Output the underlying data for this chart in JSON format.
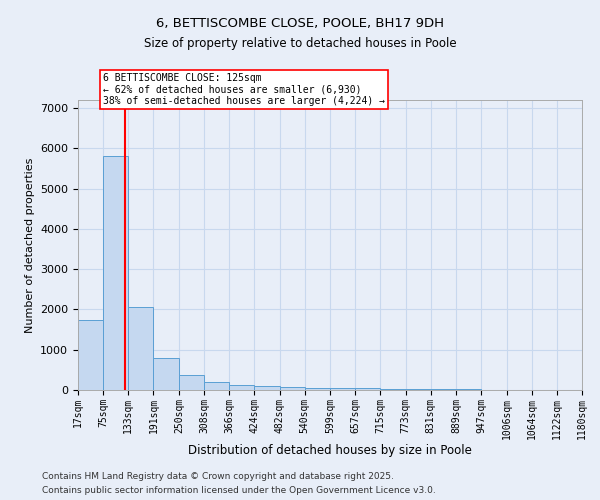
{
  "title1": "6, BETTISCOMBE CLOSE, POOLE, BH17 9DH",
  "title2": "Size of property relative to detached houses in Poole",
  "xlabel": "Distribution of detached houses by size in Poole",
  "ylabel": "Number of detached properties",
  "bin_edges": [
    17,
    75,
    133,
    191,
    250,
    308,
    366,
    424,
    482,
    540,
    599,
    657,
    715,
    773,
    831,
    889,
    947,
    1006,
    1064,
    1122,
    1180
  ],
  "bin_labels": [
    "17sqm",
    "75sqm",
    "133sqm",
    "191sqm",
    "250sqm",
    "308sqm",
    "366sqm",
    "424sqm",
    "482sqm",
    "540sqm",
    "599sqm",
    "657sqm",
    "715sqm",
    "773sqm",
    "831sqm",
    "889sqm",
    "947sqm",
    "1006sqm",
    "1064sqm",
    "1122sqm",
    "1180sqm"
  ],
  "bar_heights": [
    1750,
    5800,
    2050,
    800,
    370,
    200,
    130,
    100,
    75,
    58,
    48,
    38,
    30,
    25,
    20,
    15,
    12,
    9,
    7,
    5
  ],
  "bar_color": "#c5d8f0",
  "bar_edge_color": "#5a9fd4",
  "grid_color": "#c8d8ee",
  "property_size": 125,
  "vline_color": "red",
  "annotation_text": "6 BETTISCOMBE CLOSE: 125sqm\n← 62% of detached houses are smaller (6,930)\n38% of semi-detached houses are larger (4,224) →",
  "annotation_box_color": "white",
  "annotation_edge_color": "red",
  "ylim": [
    0,
    7200
  ],
  "yticks": [
    0,
    1000,
    2000,
    3000,
    4000,
    5000,
    6000,
    7000
  ],
  "footer1": "Contains HM Land Registry data © Crown copyright and database right 2025.",
  "footer2": "Contains public sector information licensed under the Open Government Licence v3.0.",
  "bg_color": "#e8eef8"
}
